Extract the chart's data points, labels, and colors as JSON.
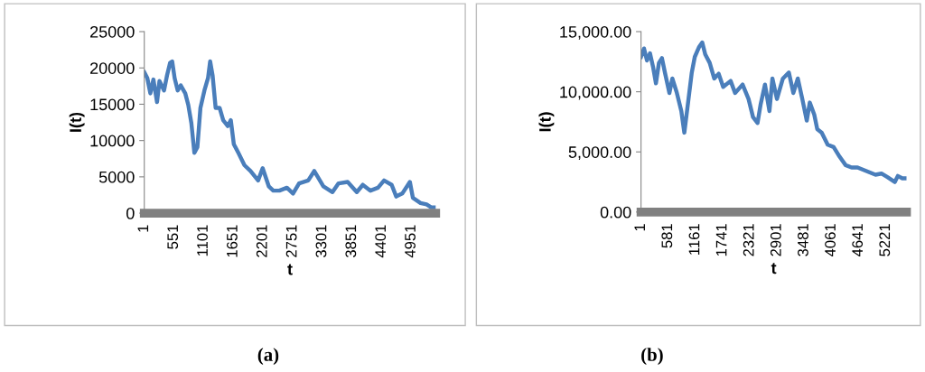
{
  "chart_data": [
    {
      "type": "line",
      "xlabel": "t",
      "ylabel": "I(t)",
      "annotations": [
        "(a)"
      ],
      "xlim": [
        1,
        5400
      ],
      "xticks": [
        1,
        551,
        1101,
        1651,
        2201,
        2751,
        3301,
        3851,
        4401,
        4951
      ],
      "ylim": [
        0,
        25000
      ],
      "yticks": [
        0,
        5000,
        10000,
        15000,
        20000,
        25000
      ],
      "grid": false,
      "legend": false,
      "marker": "none",
      "line_style": "solid",
      "series": [
        {
          "color": "#4a7ebb",
          "x": [
            1,
            57,
            113,
            170,
            237,
            282,
            367,
            423,
            479,
            518,
            563,
            620,
            676,
            760,
            816,
            873,
            929,
            985,
            1041,
            1115,
            1182,
            1221,
            1266,
            1323,
            1396,
            1463,
            1548,
            1604,
            1660,
            1744,
            1857,
            1969,
            2110,
            2194,
            2307,
            2391,
            2504,
            2644,
            2757,
            2869,
            3038,
            3150,
            3319,
            3488,
            3600,
            3769,
            3938,
            4050,
            4191,
            4331,
            4444,
            4585,
            4669,
            4781,
            4922,
            4978,
            5119,
            5231,
            5316,
            5400
          ],
          "values": [
            19400,
            18600,
            16500,
            18400,
            15300,
            18200,
            16900,
            19000,
            20700,
            20900,
            18600,
            16900,
            17600,
            16500,
            14900,
            12400,
            8300,
            9100,
            14500,
            16900,
            18600,
            20900,
            19000,
            14500,
            14500,
            12800,
            12000,
            12800,
            9500,
            8300,
            6600,
            5800,
            4500,
            6200,
            3700,
            3100,
            3100,
            3500,
            2700,
            4100,
            4500,
            5800,
            3700,
            2900,
            4100,
            4300,
            2900,
            3900,
            3100,
            3500,
            4500,
            3900,
            2300,
            2700,
            4300,
            2100,
            1400,
            1200,
            800,
            800
          ]
        }
      ]
    },
    {
      "type": "line",
      "xlabel": "t",
      "ylabel": "I(t)",
      "annotations": [
        "(b)"
      ],
      "xlim": [
        1,
        5660
      ],
      "xticks": [
        1,
        581,
        1161,
        1741,
        2321,
        2901,
        3481,
        4061,
        4641,
        5221
      ],
      "ylim": [
        0,
        15000
      ],
      "yticks": [
        {
          "value": 0,
          "label": "0.00"
        },
        {
          "value": 5000,
          "label": "5,000.00"
        },
        {
          "value": 10000,
          "label": "10,000.00"
        },
        {
          "value": 15000,
          "label": "15,000.00"
        }
      ],
      "grid": false,
      "legend": false,
      "marker": "none",
      "line_style": "solid",
      "series": [
        {
          "color": "#4a7ebb",
          "x": [
            1,
            65,
            128,
            192,
            256,
            319,
            383,
            447,
            510,
            606,
            669,
            765,
            860,
            924,
            988,
            1083,
            1147,
            1242,
            1306,
            1370,
            1465,
            1561,
            1656,
            1752,
            1911,
            2006,
            2166,
            2293,
            2388,
            2484,
            2548,
            2643,
            2738,
            2802,
            2898,
            3025,
            3152,
            3248,
            3343,
            3439,
            3534,
            3598,
            3694,
            3757,
            3853,
            3980,
            4107,
            4234,
            4362,
            4489,
            4616,
            4807,
            4998,
            5126,
            5253,
            5412,
            5475,
            5571,
            5654
          ],
          "values": [
            12900,
            13600,
            12600,
            13200,
            12100,
            10700,
            12400,
            12800,
            11600,
            9900,
            11100,
            9900,
            8400,
            6600,
            8600,
            11600,
            12900,
            13750,
            14100,
            13100,
            12400,
            11100,
            11500,
            10400,
            10900,
            9900,
            10600,
            9400,
            7900,
            7400,
            8900,
            10600,
            8400,
            11100,
            9400,
            11100,
            11600,
            9900,
            11100,
            9400,
            7600,
            9100,
            8100,
            6900,
            6600,
            5600,
            5400,
            4600,
            3900,
            3700,
            3700,
            3400,
            3100,
            3200,
            2900,
            2500,
            3000,
            2800,
            2800
          ]
        }
      ]
    }
  ]
}
